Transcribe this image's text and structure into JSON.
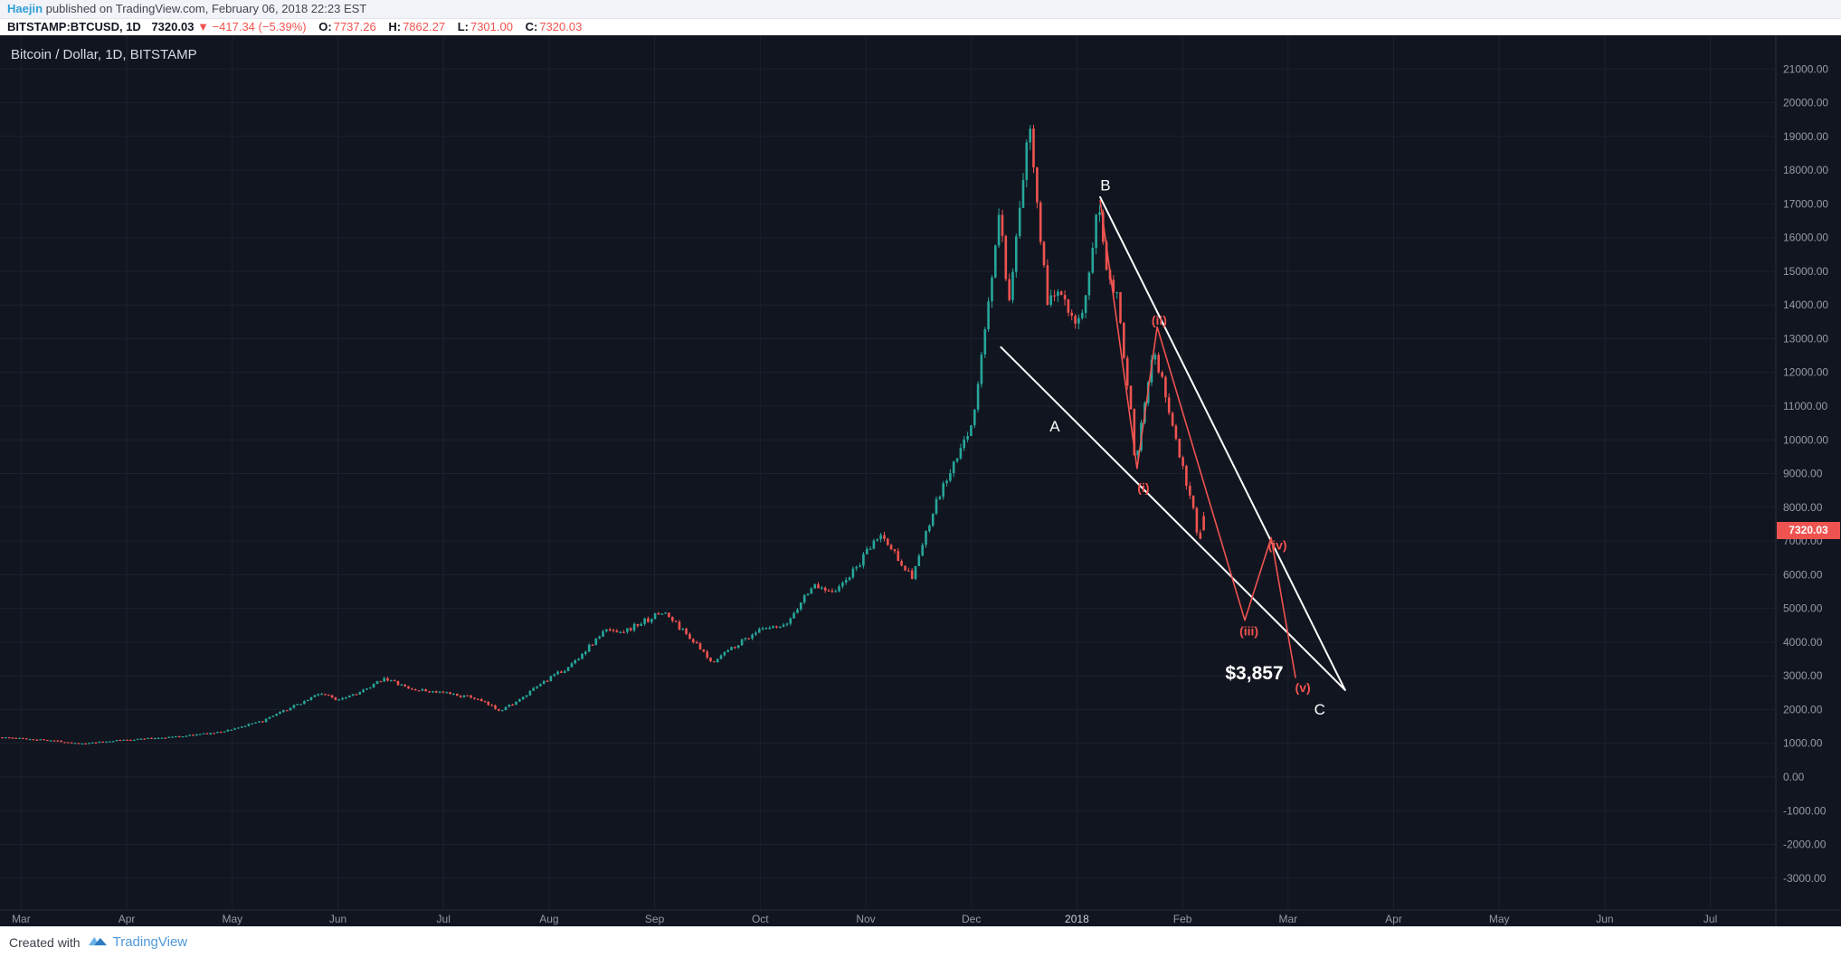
{
  "page": {
    "attribution": {
      "author": "Haejin",
      "rest": " published on TradingView.com, February 06, 2018 22:23 EST"
    },
    "footer": {
      "created_with": "Created with",
      "brand": "TradingView"
    }
  },
  "symbol_bar": {
    "symbol": "BITSTAMP:BTCUSD, 1D",
    "last": "7320.03",
    "down_icon": "▼",
    "change": "−417.34 (−5.39%)",
    "ohlc": [
      {
        "label": "O:",
        "value": "7737.26"
      },
      {
        "label": "H:",
        "value": "7862.27"
      },
      {
        "label": "L:",
        "value": "7301.00"
      },
      {
        "label": "C:",
        "value": "7320.03"
      }
    ]
  },
  "chart": {
    "legend": "Bitcoin / Dollar, 1D, BITSTAMP",
    "price_badge": "7320.03"
  },
  "chart_data": {
    "type": "candlestick",
    "title": "Bitcoin / Dollar, 1D, BITSTAMP",
    "symbol": "BITSTAMP:BTCUSD",
    "interval": "1D",
    "x_axis": {
      "labels": [
        "Mar",
        "Apr",
        "May",
        "Jun",
        "Jul",
        "Aug",
        "Sep",
        "Oct",
        "Nov",
        "Dec",
        "2018",
        "Feb",
        "Mar",
        "Apr",
        "May",
        "Jun",
        "Jul"
      ],
      "bright_label": "2018"
    },
    "y_axis": {
      "tick_min": -3000,
      "tick_max": 21000,
      "tick_step": 1000,
      "visible_min": -3500,
      "visible_max": 21500
    },
    "last_price": 7320.03,
    "last_candle": {
      "open": 7737.26,
      "high": 7862.27,
      "low": 7301.0,
      "close": 7320.03
    },
    "price_path_anchors": [
      [
        -0.18,
        1180
      ],
      [
        0.3,
        1090
      ],
      [
        0.6,
        980
      ],
      [
        0.9,
        1080
      ],
      [
        1.5,
        1200
      ],
      [
        1.9,
        1330
      ],
      [
        2.3,
        1650
      ],
      [
        2.7,
        2250
      ],
      [
        2.85,
        2500
      ],
      [
        3.0,
        2300
      ],
      [
        3.3,
        2600
      ],
      [
        3.45,
        2950
      ],
      [
        3.7,
        2600
      ],
      [
        4.0,
        2500
      ],
      [
        4.3,
        2350
      ],
      [
        4.55,
        1980
      ],
      [
        4.75,
        2300
      ],
      [
        4.95,
        2800
      ],
      [
        5.2,
        3250
      ],
      [
        5.55,
        4350
      ],
      [
        5.75,
        4350
      ],
      [
        6.0,
        4750
      ],
      [
        6.1,
        4900
      ],
      [
        6.35,
        4150
      ],
      [
        6.55,
        3400
      ],
      [
        6.8,
        3950
      ],
      [
        7.0,
        4350
      ],
      [
        7.25,
        4450
      ],
      [
        7.5,
        5650
      ],
      [
        7.75,
        5550
      ],
      [
        7.95,
        6300
      ],
      [
        8.15,
        7200
      ],
      [
        8.35,
        6400
      ],
      [
        8.45,
        5900
      ],
      [
        8.7,
        8250
      ],
      [
        8.95,
        9900
      ],
      [
        9.05,
        10900
      ],
      [
        9.18,
        14100
      ],
      [
        9.28,
        16700
      ],
      [
        9.38,
        13800
      ],
      [
        9.5,
        17700
      ],
      [
        9.58,
        19300
      ],
      [
        9.68,
        15800
      ],
      [
        9.75,
        13900
      ],
      [
        9.85,
        14600
      ],
      [
        9.95,
        13900
      ],
      [
        10.05,
        13400
      ],
      [
        10.15,
        15000
      ],
      [
        10.22,
        17100
      ],
      [
        10.3,
        15200
      ],
      [
        10.4,
        14300
      ],
      [
        10.5,
        11600
      ],
      [
        10.57,
        9350
      ],
      [
        10.68,
        11700
      ],
      [
        10.75,
        12800
      ],
      [
        10.85,
        11300
      ],
      [
        10.95,
        10100
      ],
      [
        11.02,
        9100
      ],
      [
        11.1,
        8300
      ],
      [
        11.17,
        6950
      ],
      [
        11.22,
        7320
      ]
    ],
    "trend_lines": [
      {
        "name": "B-C upper wedge line",
        "points": [
          [
            10.22,
            17200
          ],
          [
            12.54,
            2580
          ]
        ],
        "color": "#ffffff",
        "width": 2
      },
      {
        "name": "A-C lower wedge line",
        "points": [
          [
            9.28,
            12750
          ],
          [
            12.54,
            2580
          ]
        ],
        "color": "#ffffff",
        "width": 2
      }
    ],
    "projection_lines": [
      {
        "name": "elliott-wave-projection",
        "points": [
          [
            10.22,
            17100
          ],
          [
            10.57,
            9150
          ],
          [
            10.76,
            13350
          ],
          [
            11.59,
            4650
          ],
          [
            11.84,
            7100
          ],
          [
            12.07,
            2950
          ]
        ],
        "color": "#ef5350",
        "width": 1.6
      }
    ],
    "annotations": [
      {
        "text": "A",
        "t": 9.79,
        "p": 10250,
        "color": "#ffffff",
        "size": 17,
        "weight": 500
      },
      {
        "text": "B",
        "t": 10.27,
        "p": 17400,
        "color": "#ffffff",
        "size": 17,
        "weight": 500
      },
      {
        "text": "C",
        "t": 12.3,
        "p": 1850,
        "color": "#ffffff",
        "size": 17,
        "weight": 500
      },
      {
        "text": "(i)",
        "t": 10.63,
        "p": 8450,
        "color": "#ef5350",
        "size": 14,
        "weight": 700
      },
      {
        "text": "(ii)",
        "t": 10.78,
        "p": 13420,
        "color": "#ef5350",
        "size": 14,
        "weight": 700
      },
      {
        "text": "(iii)",
        "t": 11.63,
        "p": 4200,
        "color": "#ef5350",
        "size": 14,
        "weight": 700
      },
      {
        "text": "(iv)",
        "t": 11.9,
        "p": 6750,
        "color": "#ef5350",
        "size": 14,
        "weight": 700
      },
      {
        "text": "(v)",
        "t": 12.14,
        "p": 2520,
        "color": "#ef5350",
        "size": 14,
        "weight": 700
      },
      {
        "text": "$3,857",
        "t": 11.68,
        "p": 2900,
        "color": "#ffffff",
        "size": 21,
        "weight": 700
      }
    ],
    "colors": {
      "up": "#26a69a",
      "down": "#ef5350",
      "bg": "#11151f",
      "grid": "#1c212e",
      "axis_line": "#2a2e39",
      "axis_text": "#959aa5",
      "axis_text_bright": "#cfd3dd"
    }
  }
}
